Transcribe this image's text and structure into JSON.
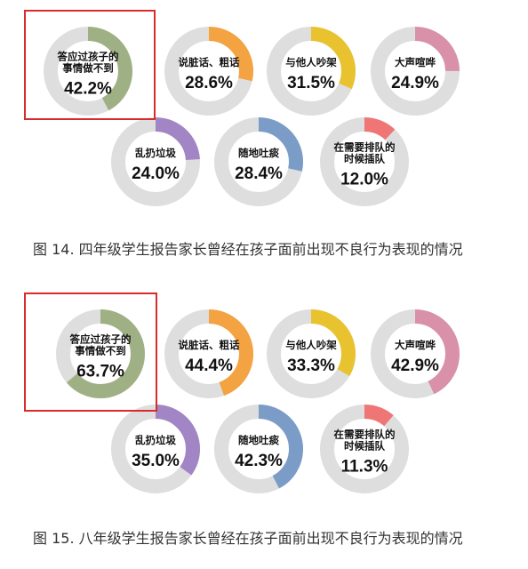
{
  "colors": {
    "track": "#dedede",
    "highlight_box": "#d92b2b"
  },
  "chart_data": [
    {
      "type": "donut",
      "caption": "图 14.  四年级学生报告家长曾经在孩子面前出现不良行为表现的情况",
      "highlighted_index": 0,
      "items": [
        {
          "label_lines": [
            "答应过孩子的",
            "事情做不到"
          ],
          "value": 42.2,
          "value_text": "42.2%",
          "color": "#9fb184"
        },
        {
          "label_lines": [
            "说脏话、粗话"
          ],
          "value": 28.6,
          "value_text": "28.6%",
          "color": "#f3a341"
        },
        {
          "label_lines": [
            "与他人吵架"
          ],
          "value": 31.5,
          "value_text": "31.5%",
          "color": "#e8c22f"
        },
        {
          "label_lines": [
            "大声喧哗"
          ],
          "value": 24.9,
          "value_text": "24.9%",
          "color": "#d891a8"
        },
        {
          "label_lines": [
            "乱扔垃圾"
          ],
          "value": 24.0,
          "value_text": "24.0%",
          "color": "#a285c4"
        },
        {
          "label_lines": [
            "随地吐痰"
          ],
          "value": 28.4,
          "value_text": "28.4%",
          "color": "#7b9cc7"
        },
        {
          "label_lines": [
            "在需要排队的",
            "时候插队"
          ],
          "value": 12.0,
          "value_text": "12.0%",
          "color": "#f07575"
        }
      ]
    },
    {
      "type": "donut",
      "caption": "图 15.  八年级学生报告家长曾经在孩子面前出现不良行为表现的情况",
      "highlighted_index": 0,
      "items": [
        {
          "label_lines": [
            "答应过孩子的",
            "事情做不到"
          ],
          "value": 63.7,
          "value_text": "63.7%",
          "color": "#9fb184"
        },
        {
          "label_lines": [
            "说脏话、粗话"
          ],
          "value": 44.4,
          "value_text": "44.4%",
          "color": "#f3a341"
        },
        {
          "label_lines": [
            "与他人吵架"
          ],
          "value": 33.3,
          "value_text": "33.3%",
          "color": "#e8c22f"
        },
        {
          "label_lines": [
            "大声喧哗"
          ],
          "value": 42.9,
          "value_text": "42.9%",
          "color": "#d891a8"
        },
        {
          "label_lines": [
            "乱扔垃圾"
          ],
          "value": 35.0,
          "value_text": "35.0%",
          "color": "#a285c4"
        },
        {
          "label_lines": [
            "随地吐痰"
          ],
          "value": 42.3,
          "value_text": "42.3%",
          "color": "#7b9cc7"
        },
        {
          "label_lines": [
            "在需要排队的",
            "时候插队"
          ],
          "value": 11.3,
          "value_text": "11.3%",
          "color": "#f07575"
        }
      ]
    }
  ]
}
